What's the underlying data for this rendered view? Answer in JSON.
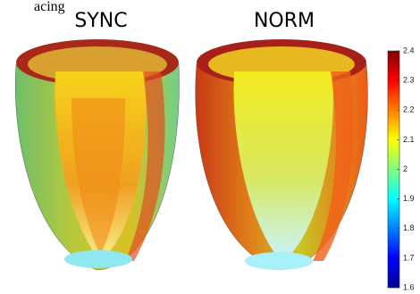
{
  "chart_data": {
    "type": "colorbar",
    "top_text": "acing",
    "panels": [
      "SYNC",
      "NORM"
    ],
    "clim": [
      1.6,
      2.4
    ],
    "ticks": [
      1.6,
      1.7,
      1.8,
      1.9,
      2,
      2.1,
      2.2,
      2.3,
      2.4
    ],
    "colormap": [
      "#00008f",
      "#0000ff",
      "#0080ff",
      "#00ffff",
      "#80ff80",
      "#ffff00",
      "#ff8000",
      "#ff0000",
      "#800000"
    ]
  }
}
